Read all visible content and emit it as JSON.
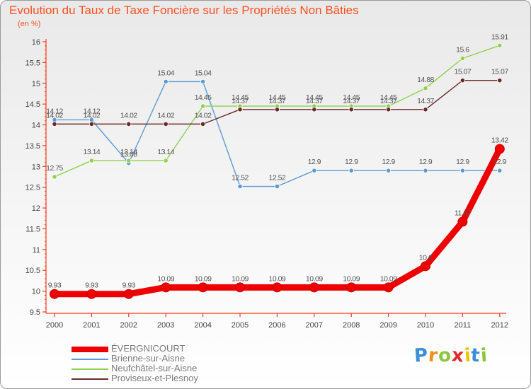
{
  "chart_data": {
    "type": "line",
    "title": "Evolution du Taux de Taxe Foncière sur les Propriétés Non Bâties",
    "ylabel": "(en %)",
    "xlabel": "",
    "categories": [
      "2000",
      "2001",
      "2002",
      "2003",
      "2004",
      "2005",
      "2006",
      "2007",
      "2008",
      "2009",
      "2010",
      "2011",
      "2012"
    ],
    "ylim": [
      9.5,
      16
    ],
    "yticks": [
      9.5,
      10,
      10.5,
      11,
      11.5,
      12,
      12.5,
      13,
      13.5,
      14,
      14.5,
      15,
      15.5,
      16
    ],
    "grid": false,
    "legend_position": "bottom-left",
    "series": [
      {
        "name": "ÉVERGNICOURT",
        "color": "#ee0000",
        "emphasis": true,
        "values": [
          9.93,
          9.93,
          9.93,
          10.09,
          10.09,
          10.09,
          10.09,
          10.09,
          10.09,
          10.09,
          10.6,
          11.67,
          13.42
        ],
        "labels": [
          "9.93",
          "9.93",
          "9.93",
          "10.09",
          "10.09",
          "10.09",
          "10.09",
          "10.09",
          "10.09",
          "10.09",
          "10.6",
          "11.67",
          "13.42"
        ]
      },
      {
        "name": "Brienne-sur-Aisne",
        "color": "#5b9bd5",
        "emphasis": false,
        "values": [
          14.12,
          14.12,
          13.08,
          15.04,
          15.04,
          12.52,
          12.52,
          12.9,
          12.9,
          12.9,
          12.9,
          12.9,
          12.9
        ],
        "labels": [
          "14.12",
          "14.12",
          "13.08",
          "15.04",
          "15.04",
          "12.52",
          "12.52",
          "12.9",
          "12.9",
          "12.9",
          "12.9",
          "12.9",
          "12.9"
        ]
      },
      {
        "name": "Neufchâtel-sur-Aisne",
        "color": "#8fd14f",
        "emphasis": false,
        "values": [
          12.75,
          13.14,
          13.14,
          13.14,
          14.45,
          14.45,
          14.45,
          14.45,
          14.45,
          14.45,
          14.88,
          15.6,
          15.91
        ],
        "labels": [
          "12.75",
          "13.14",
          "13.14",
          "13.14",
          "14.45",
          "14.45",
          "14.45",
          "14.45",
          "14.45",
          "14.45",
          "14.88",
          "15.6",
          "15.91"
        ]
      },
      {
        "name": "Proviseux-et-Plesnoy",
        "color": "#6b2a2a",
        "emphasis": false,
        "values": [
          14.02,
          14.02,
          14.02,
          14.02,
          14.02,
          14.37,
          14.37,
          14.37,
          14.37,
          14.37,
          14.37,
          15.07,
          15.07
        ],
        "labels": [
          "14.02",
          "14.02",
          "14.02",
          "14.02",
          "14.02",
          "14.37",
          "14.37",
          "14.37",
          "14.37",
          "14.37",
          "14.37",
          "15.07",
          "15.07"
        ]
      }
    ]
  },
  "brand": {
    "letters": [
      "P",
      "r",
      "o",
      "x",
      "i",
      "t",
      "i"
    ],
    "colors": [
      "#3b8fd8",
      "#f28c1c",
      "#8cc63f",
      "#e02a2a",
      "#f2c200",
      "#3b8fd8",
      "#8cc63f"
    ]
  },
  "colors": {
    "title": "#ff4f1f",
    "axis": "#ff3b1f",
    "tick_text": "#444444",
    "value_text": "#555555"
  }
}
